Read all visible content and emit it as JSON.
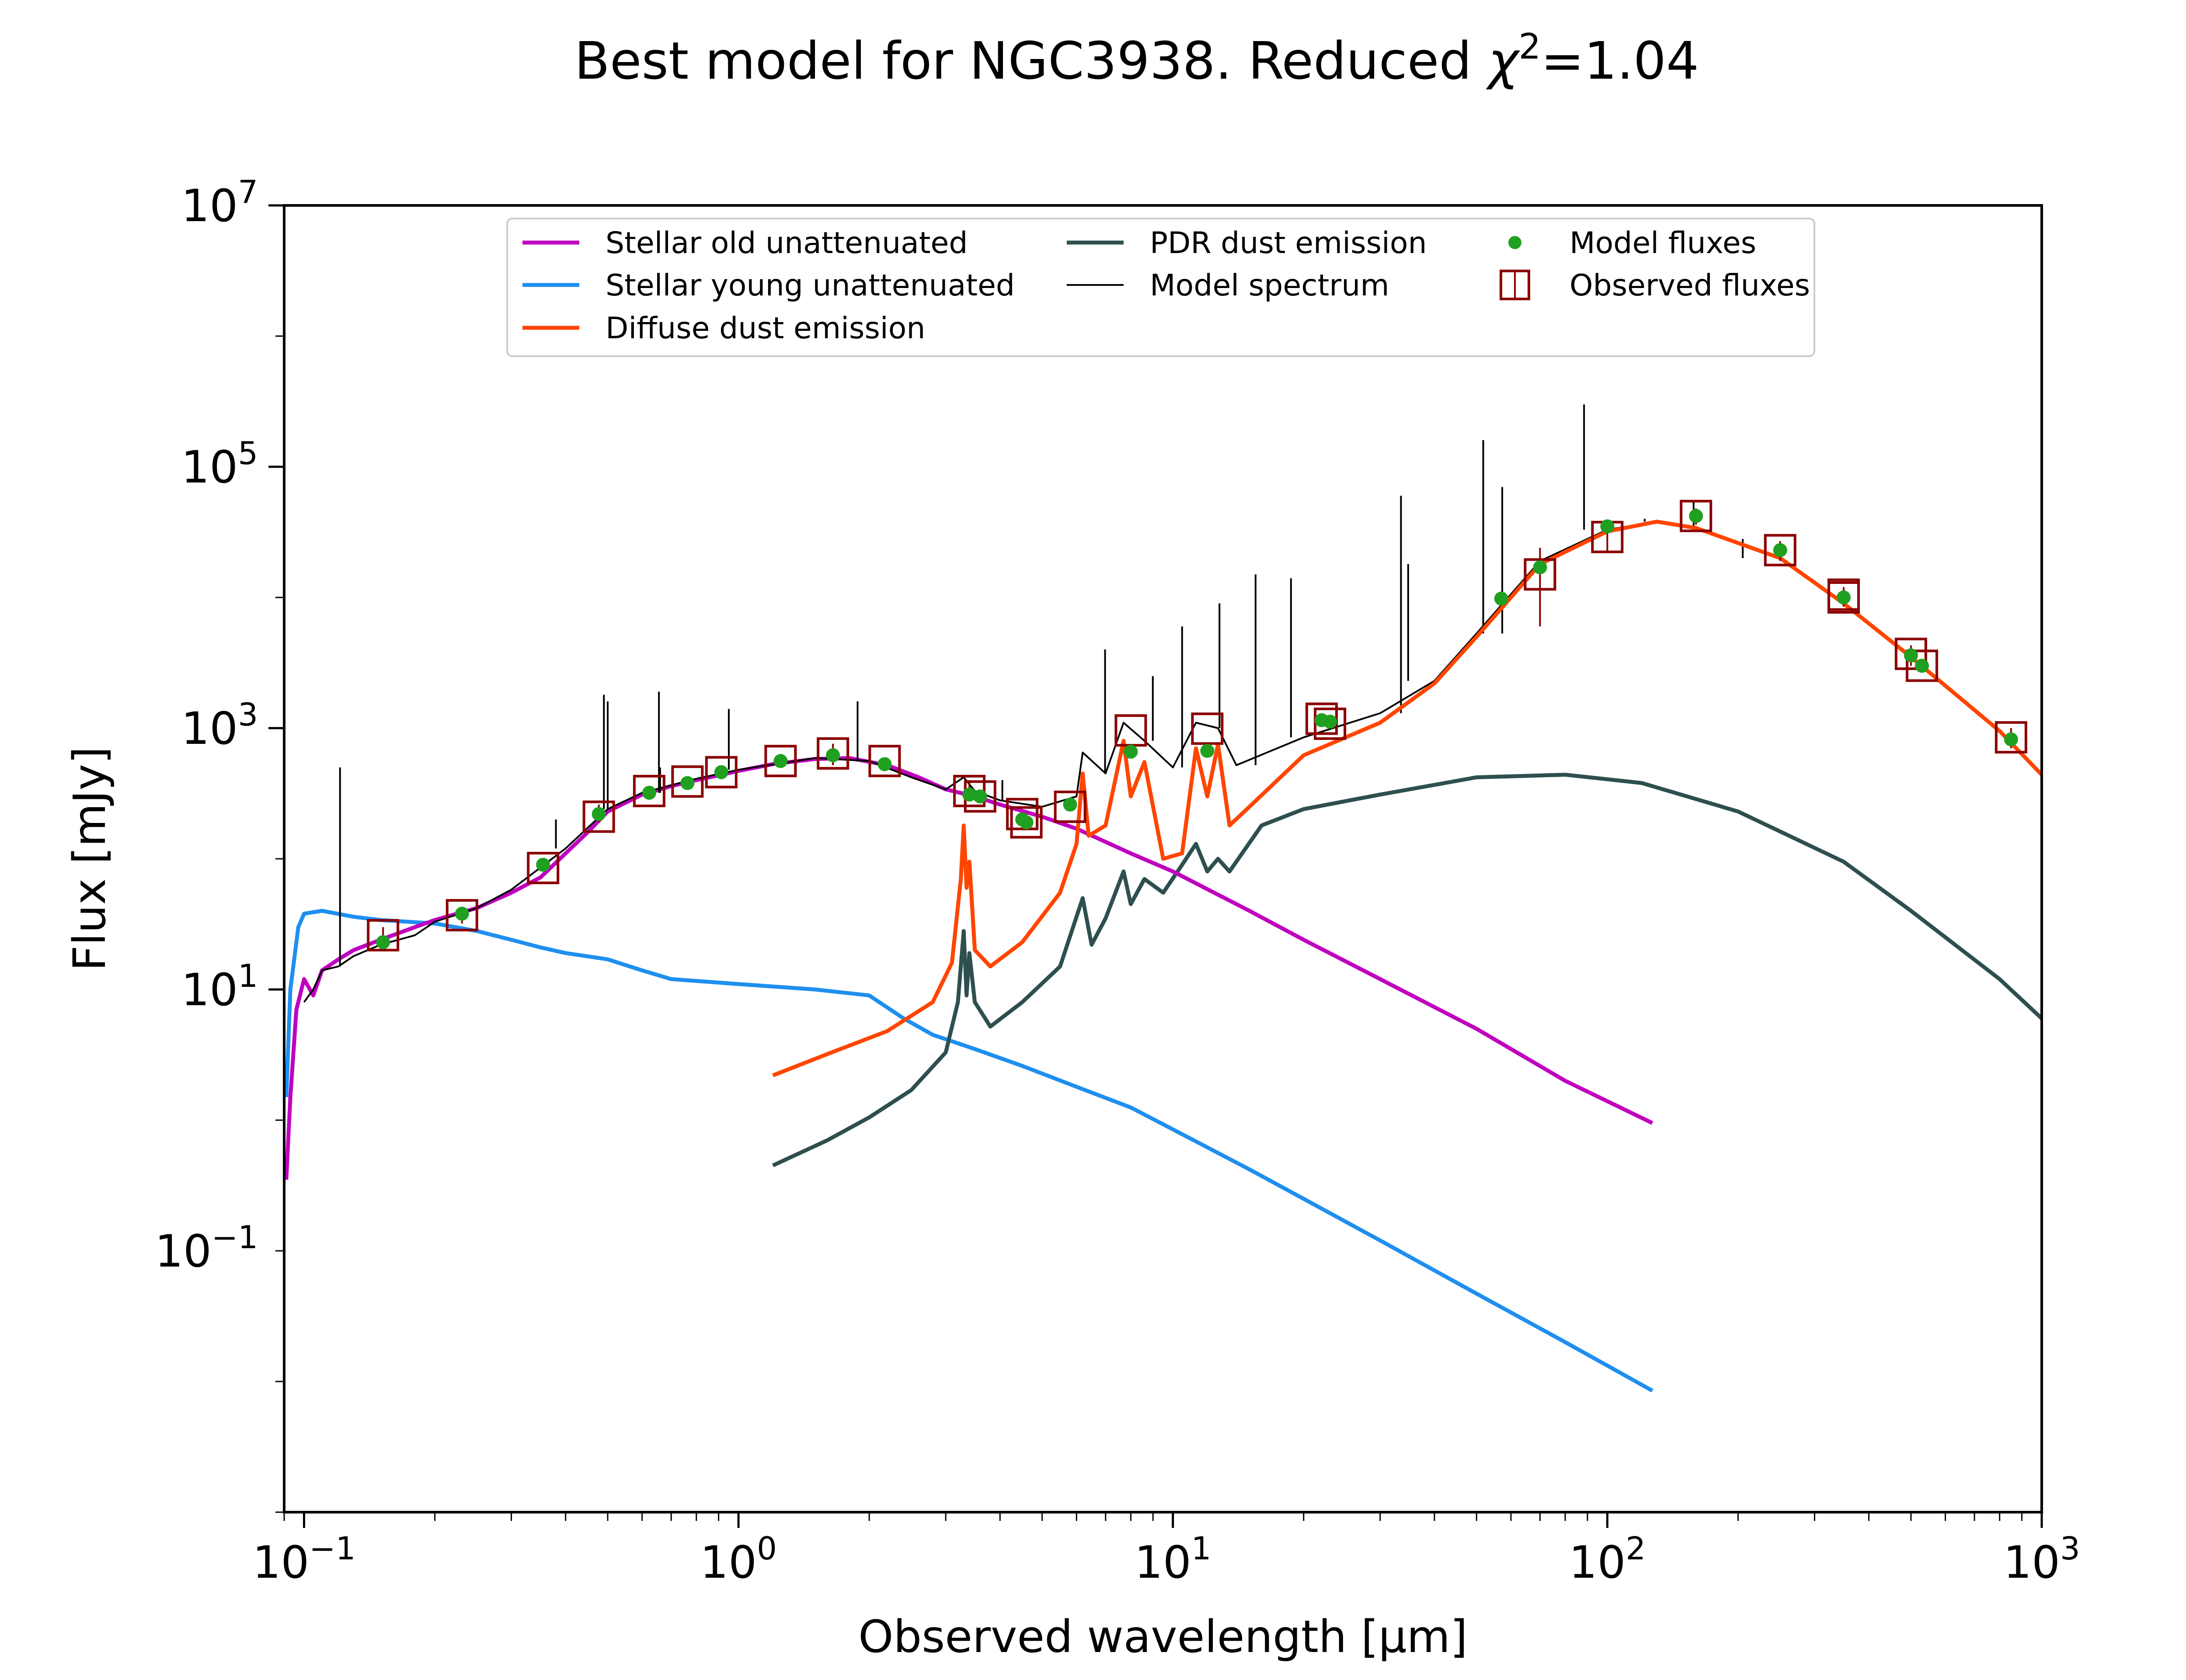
{
  "chart_data": {
    "type": "line",
    "title": "Best model for NGC3938. Reduced χ²=1.04",
    "title_parts": {
      "prefix": "Best model for NGC3938. Reduced ",
      "symbol": "χ",
      "exponent": "2",
      "suffix": "=1.04"
    },
    "xlabel": "Observed wavelength [μm]",
    "ylabel": "Flux [mJy]",
    "x_scale": "log",
    "y_scale": "log",
    "xlim": [
      0.09,
      1000
    ],
    "ylim": [
      0.001,
      10000000
    ],
    "x_ticks": [
      {
        "value": 0.1,
        "base": "10",
        "exp": "−1"
      },
      {
        "value": 1,
        "base": "10",
        "exp": "0"
      },
      {
        "value": 10,
        "base": "10",
        "exp": "1"
      },
      {
        "value": 100,
        "base": "10",
        "exp": "2"
      },
      {
        "value": 1000,
        "base": "10",
        "exp": "3"
      }
    ],
    "y_ticks": [
      {
        "value": 0.1,
        "base": "10",
        "exp": "−1"
      },
      {
        "value": 10,
        "base": "10",
        "exp": "1"
      },
      {
        "value": 1000,
        "base": "10",
        "exp": "3"
      },
      {
        "value": 100000,
        "base": "10",
        "exp": "5"
      },
      {
        "value": 10000000,
        "base": "10",
        "exp": "7"
      }
    ],
    "grid": false,
    "legend_position": "top",
    "series": [
      {
        "name": "Stellar old unattenuated",
        "color": "#bf00bf",
        "points": [
          [
            0.091,
            0.35
          ],
          [
            0.093,
            1.5
          ],
          [
            0.096,
            7
          ],
          [
            0.1,
            12
          ],
          [
            0.105,
            9
          ],
          [
            0.11,
            14
          ],
          [
            0.12,
            17
          ],
          [
            0.13,
            20
          ],
          [
            0.15,
            24
          ],
          [
            0.18,
            30
          ],
          [
            0.2,
            34
          ],
          [
            0.25,
            42
          ],
          [
            0.3,
            55
          ],
          [
            0.35,
            72
          ],
          [
            0.4,
            110
          ],
          [
            0.45,
            160
          ],
          [
            0.5,
            230
          ],
          [
            0.6,
            310
          ],
          [
            0.7,
            360
          ],
          [
            0.8,
            400
          ],
          [
            1.0,
            470
          ],
          [
            1.2,
            530
          ],
          [
            1.5,
            580
          ],
          [
            1.8,
            590
          ],
          [
            2.2,
            520
          ],
          [
            2.6,
            420
          ],
          [
            3.0,
            340
          ],
          [
            3.5,
            300
          ],
          [
            4.0,
            260
          ],
          [
            5.0,
            210
          ],
          [
            6.0,
            170
          ],
          [
            8.0,
            110
          ],
          [
            10.0,
            80
          ],
          [
            15.0,
            40
          ],
          [
            20.0,
            24
          ],
          [
            30.0,
            12
          ],
          [
            50.0,
            5
          ],
          [
            80.0,
            2
          ],
          [
            127,
            0.95
          ]
        ]
      },
      {
        "name": "Stellar young unattenuated",
        "color": "#1f8fef",
        "points": [
          [
            0.091,
            1.5
          ],
          [
            0.093,
            10
          ],
          [
            0.097,
            30
          ],
          [
            0.1,
            38
          ],
          [
            0.11,
            40
          ],
          [
            0.13,
            36
          ],
          [
            0.15,
            34
          ],
          [
            0.2,
            32
          ],
          [
            0.25,
            28
          ],
          [
            0.3,
            24
          ],
          [
            0.35,
            21
          ],
          [
            0.4,
            19
          ],
          [
            0.5,
            17
          ],
          [
            0.6,
            14
          ],
          [
            0.7,
            12
          ],
          [
            1.0,
            11
          ],
          [
            1.5,
            10
          ],
          [
            2.0,
            9
          ],
          [
            2.4,
            6
          ],
          [
            2.8,
            4.5
          ],
          [
            3.5,
            3.5
          ],
          [
            4.5,
            2.6
          ],
          [
            6.0,
            1.8
          ],
          [
            8.0,
            1.25
          ],
          [
            10.0,
            0.85
          ],
          [
            15.0,
            0.42
          ],
          [
            20.0,
            0.25
          ],
          [
            30.0,
            0.12
          ],
          [
            50.0,
            0.047
          ],
          [
            80.0,
            0.02
          ],
          [
            127,
            0.0085
          ]
        ]
      },
      {
        "name": "Diffuse dust emission",
        "color": "#ff4500",
        "points": [
          [
            1.2,
            2.2
          ],
          [
            1.6,
            3.2
          ],
          [
            2.2,
            4.8
          ],
          [
            2.8,
            8
          ],
          [
            3.1,
            16
          ],
          [
            3.25,
            70
          ],
          [
            3.3,
            180
          ],
          [
            3.35,
            60
          ],
          [
            3.4,
            95
          ],
          [
            3.5,
            20
          ],
          [
            3.8,
            15
          ],
          [
            4.5,
            23
          ],
          [
            5.5,
            55
          ],
          [
            6.0,
            130
          ],
          [
            6.2,
            450
          ],
          [
            6.4,
            150
          ],
          [
            7.0,
            180
          ],
          [
            7.7,
            800
          ],
          [
            8.0,
            300
          ],
          [
            8.6,
            550
          ],
          [
            9.5,
            100
          ],
          [
            10.5,
            110
          ],
          [
            11.3,
            700
          ],
          [
            12.0,
            300
          ],
          [
            12.7,
            750
          ],
          [
            13.5,
            180
          ],
          [
            15.0,
            250
          ],
          [
            20.0,
            620
          ],
          [
            30.0,
            1100
          ],
          [
            40.0,
            2200
          ],
          [
            50.0,
            5000
          ],
          [
            70.0,
            18000
          ],
          [
            100.0,
            32000
          ],
          [
            130.0,
            38000
          ],
          [
            160.0,
            34000
          ],
          [
            250.0,
            20000
          ],
          [
            350.0,
            9000
          ],
          [
            500.0,
            3500
          ],
          [
            800.0,
            950
          ],
          [
            1000.0,
            440
          ]
        ]
      },
      {
        "name": "PDR dust emission",
        "color": "#2f4f4f",
        "points": [
          [
            1.2,
            0.45
          ],
          [
            1.6,
            0.7
          ],
          [
            2.0,
            1.05
          ],
          [
            2.5,
            1.7
          ],
          [
            3.0,
            3.3
          ],
          [
            3.2,
            8
          ],
          [
            3.3,
            28
          ],
          [
            3.35,
            9
          ],
          [
            3.4,
            19
          ],
          [
            3.5,
            8
          ],
          [
            3.8,
            5.2
          ],
          [
            4.5,
            8
          ],
          [
            5.5,
            15
          ],
          [
            6.2,
            50
          ],
          [
            6.5,
            22
          ],
          [
            7.0,
            35
          ],
          [
            7.7,
            80
          ],
          [
            8.0,
            45
          ],
          [
            8.6,
            70
          ],
          [
            9.5,
            55
          ],
          [
            10.5,
            90
          ],
          [
            11.3,
            130
          ],
          [
            12.0,
            80
          ],
          [
            12.7,
            100
          ],
          [
            13.5,
            80
          ],
          [
            16.0,
            180
          ],
          [
            20.0,
            240
          ],
          [
            30.0,
            310
          ],
          [
            50.0,
            420
          ],
          [
            80.0,
            440
          ],
          [
            120.0,
            380
          ],
          [
            200.0,
            230
          ],
          [
            350.0,
            95
          ],
          [
            500.0,
            40
          ],
          [
            800.0,
            12
          ],
          [
            1000.0,
            6
          ]
        ]
      },
      {
        "name": "Model spectrum",
        "color": "#000000",
        "points": [
          [
            0.1,
            8
          ],
          [
            0.105,
            10
          ],
          [
            0.11,
            14
          ],
          [
            0.12,
            15
          ],
          [
            0.13,
            18
          ],
          [
            0.15,
            22
          ],
          [
            0.18,
            26
          ],
          [
            0.2,
            33
          ],
          [
            0.25,
            42
          ],
          [
            0.3,
            58
          ],
          [
            0.4,
            120
          ],
          [
            0.5,
            240
          ],
          [
            0.6,
            320
          ],
          [
            0.8,
            410
          ],
          [
            1.0,
            480
          ],
          [
            1.5,
            590
          ],
          [
            2.0,
            560
          ],
          [
            2.5,
            420
          ],
          [
            3.0,
            340
          ],
          [
            3.3,
            420
          ],
          [
            3.5,
            330
          ],
          [
            4.0,
            280
          ],
          [
            5.0,
            250
          ],
          [
            6.0,
            300
          ],
          [
            6.2,
            650
          ],
          [
            7.0,
            450
          ],
          [
            7.7,
            1100
          ],
          [
            8.6,
            800
          ],
          [
            10.0,
            500
          ],
          [
            11.3,
            1100
          ],
          [
            12.7,
            1000
          ],
          [
            14.0,
            520
          ],
          [
            20.0,
            850
          ],
          [
            30.0,
            1300
          ],
          [
            40.0,
            2300
          ],
          [
            50.0,
            5300
          ],
          [
            70.0,
            19000
          ],
          [
            100.0,
            33000
          ],
          [
            130.0,
            38000
          ],
          [
            160.0,
            34000
          ],
          [
            250.0,
            20000
          ],
          [
            350.0,
            9000
          ],
          [
            500.0,
            3500
          ],
          [
            800.0,
            950
          ],
          [
            1000.0,
            440
          ]
        ],
        "emission_lines": [
          [
            0.121,
            500
          ],
          [
            0.38,
            200
          ],
          [
            0.49,
            1800
          ],
          [
            0.5,
            1600
          ],
          [
            0.656,
            1900
          ],
          [
            0.66,
            500
          ],
          [
            0.95,
            1400
          ],
          [
            1.88,
            1600
          ],
          [
            4.05,
            400
          ],
          [
            6.98,
            4000
          ],
          [
            8.99,
            2500
          ],
          [
            10.5,
            6000
          ],
          [
            12.8,
            9000
          ],
          [
            15.5,
            15000
          ],
          [
            18.7,
            14000
          ],
          [
            33.5,
            60000
          ],
          [
            34.8,
            18000
          ],
          [
            51.8,
            160000
          ],
          [
            57.3,
            70000
          ],
          [
            88.4,
            300000
          ],
          [
            121.9,
            40000
          ],
          [
            158,
            55000
          ],
          [
            205,
            28000
          ]
        ]
      },
      {
        "name": "Model fluxes",
        "color": "#20a020",
        "points": [
          [
            0.152,
            23
          ],
          [
            0.231,
            38
          ],
          [
            0.355,
            90
          ],
          [
            0.477,
            220
          ],
          [
            0.623,
            320
          ],
          [
            0.763,
            380
          ],
          [
            0.913,
            460
          ],
          [
            1.25,
            560
          ],
          [
            1.65,
            620
          ],
          [
            2.17,
            530
          ],
          [
            3.4,
            310
          ],
          [
            3.6,
            300
          ],
          [
            4.5,
            200
          ],
          [
            4.6,
            190
          ],
          [
            5.8,
            260
          ],
          [
            8.0,
            660
          ],
          [
            12.0,
            670
          ],
          [
            22.0,
            1150
          ],
          [
            23.0,
            1120
          ],
          [
            57.0,
            9800
          ],
          [
            70.0,
            17000
          ],
          [
            100.0,
            35000
          ],
          [
            160.0,
            42000
          ],
          [
            250.0,
            23000
          ],
          [
            350.0,
            10000
          ],
          [
            500.0,
            3600
          ],
          [
            530.0,
            3000
          ],
          [
            850.0,
            820
          ]
        ]
      },
      {
        "name": "Observed fluxes",
        "color": "#8b0000",
        "points": [
          [
            0.152,
            26
          ],
          [
            0.231,
            37
          ],
          [
            0.355,
            85
          ],
          [
            0.477,
            210
          ],
          [
            0.623,
            330
          ],
          [
            0.763,
            390
          ],
          [
            0.913,
            460
          ],
          [
            1.25,
            560
          ],
          [
            1.65,
            640
          ],
          [
            2.17,
            560
          ],
          [
            3.4,
            330
          ],
          [
            3.6,
            300
          ],
          [
            4.5,
            220
          ],
          [
            4.6,
            190
          ],
          [
            5.8,
            250
          ],
          [
            8.0,
            960
          ],
          [
            12.0,
            990
          ],
          [
            22.0,
            1180
          ],
          [
            23.0,
            1080
          ],
          [
            70.0,
            15000
          ],
          [
            100.0,
            29000
          ],
          [
            160.0,
            42000
          ],
          [
            250.0,
            23000
          ],
          [
            350.0,
            10000
          ],
          [
            350.0,
            10500
          ],
          [
            500.0,
            3700
          ],
          [
            530.0,
            3000
          ],
          [
            850.0,
            850
          ]
        ],
        "error_bars": [
          [
            0.152,
            20,
            30
          ],
          [
            0.231,
            32,
            42
          ],
          [
            0.477,
            190,
            260
          ],
          [
            1.65,
            520,
            760
          ],
          [
            3.4,
            280,
            400
          ],
          [
            70.0,
            6000,
            24000
          ],
          [
            100.0,
            22000,
            36000
          ],
          [
            160.0,
            36000,
            48000
          ],
          [
            250.0,
            19000,
            27000
          ],
          [
            350.0,
            8500,
            12000
          ],
          [
            500.0,
            3000,
            4300
          ],
          [
            850.0,
            700,
            1000
          ]
        ]
      }
    ]
  }
}
